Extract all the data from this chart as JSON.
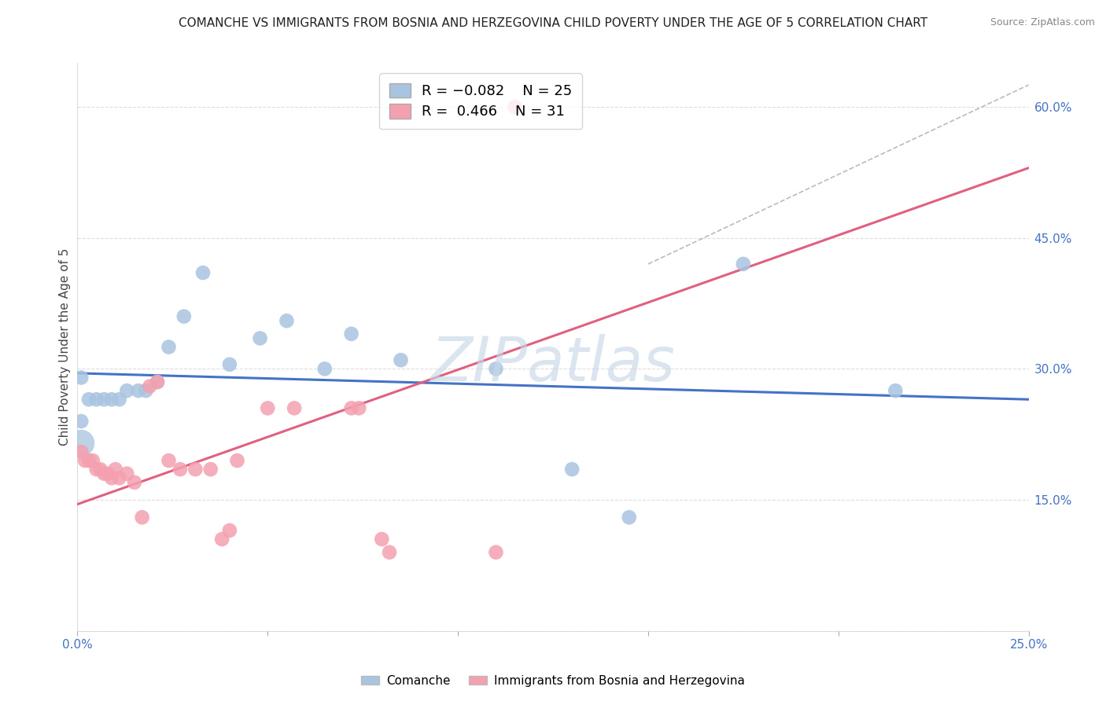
{
  "title": "COMANCHE VS IMMIGRANTS FROM BOSNIA AND HERZEGOVINA CHILD POVERTY UNDER THE AGE OF 5 CORRELATION CHART",
  "source": "Source: ZipAtlas.com",
  "ylabel": "Child Poverty Under the Age of 5",
  "xlim": [
    0.0,
    0.25
  ],
  "ylim": [
    0.0,
    0.65
  ],
  "right_yticks": [
    0.0,
    0.15,
    0.3,
    0.45,
    0.6
  ],
  "right_yticklabels": [
    "",
    "15.0%",
    "30.0%",
    "45.0%",
    "60.0%"
  ],
  "blue_color": "#a8c4e0",
  "pink_color": "#f4a0b0",
  "blue_line_color": "#4472c4",
  "pink_line_color": "#e06080",
  "diag_line_color": "#bbbbbb",
  "watermark_color": "#c8d8e8",
  "background_color": "#ffffff",
  "grid_color": "#dddddd",
  "right_axis_color": "#4472c4",
  "legend_blue_R": "-0.082",
  "legend_blue_N": "25",
  "legend_pink_R": "0.466",
  "legend_pink_N": "31",
  "blue_scatter": [
    [
      0.001,
      0.29
    ],
    [
      0.003,
      0.265
    ],
    [
      0.005,
      0.265
    ],
    [
      0.007,
      0.265
    ],
    [
      0.009,
      0.265
    ],
    [
      0.011,
      0.265
    ],
    [
      0.001,
      0.24
    ],
    [
      0.013,
      0.275
    ],
    [
      0.016,
      0.275
    ],
    [
      0.018,
      0.275
    ],
    [
      0.021,
      0.285
    ],
    [
      0.024,
      0.325
    ],
    [
      0.028,
      0.36
    ],
    [
      0.033,
      0.41
    ],
    [
      0.04,
      0.305
    ],
    [
      0.048,
      0.335
    ],
    [
      0.055,
      0.355
    ],
    [
      0.065,
      0.3
    ],
    [
      0.072,
      0.34
    ],
    [
      0.085,
      0.31
    ],
    [
      0.11,
      0.3
    ],
    [
      0.13,
      0.185
    ],
    [
      0.145,
      0.13
    ],
    [
      0.175,
      0.42
    ],
    [
      0.215,
      0.275
    ]
  ],
  "pink_scatter": [
    [
      0.001,
      0.205
    ],
    [
      0.002,
      0.195
    ],
    [
      0.003,
      0.195
    ],
    [
      0.004,
      0.195
    ],
    [
      0.005,
      0.185
    ],
    [
      0.006,
      0.185
    ],
    [
      0.007,
      0.18
    ],
    [
      0.008,
      0.18
    ],
    [
      0.009,
      0.175
    ],
    [
      0.01,
      0.185
    ],
    [
      0.011,
      0.175
    ],
    [
      0.013,
      0.18
    ],
    [
      0.015,
      0.17
    ],
    [
      0.017,
      0.13
    ],
    [
      0.019,
      0.28
    ],
    [
      0.021,
      0.285
    ],
    [
      0.024,
      0.195
    ],
    [
      0.027,
      0.185
    ],
    [
      0.031,
      0.185
    ],
    [
      0.035,
      0.185
    ],
    [
      0.038,
      0.105
    ],
    [
      0.04,
      0.115
    ],
    [
      0.042,
      0.195
    ],
    [
      0.05,
      0.255
    ],
    [
      0.057,
      0.255
    ],
    [
      0.072,
      0.255
    ],
    [
      0.074,
      0.255
    ],
    [
      0.08,
      0.105
    ],
    [
      0.082,
      0.09
    ],
    [
      0.11,
      0.09
    ],
    [
      0.115,
      0.6
    ]
  ],
  "blue_line": [
    0.0,
    0.25,
    0.295,
    0.265
  ],
  "pink_line": [
    0.0,
    0.25,
    0.145,
    0.53
  ],
  "diag_line": [
    0.15,
    0.25,
    0.42,
    0.625
  ],
  "blue_large_dot": [
    0.001,
    0.215,
    600
  ]
}
